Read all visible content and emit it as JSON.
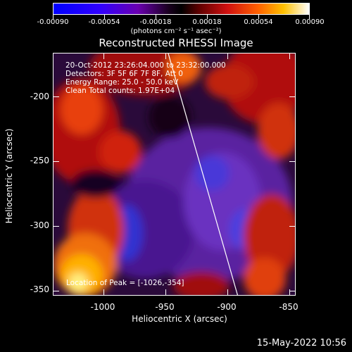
{
  "colorbar": {
    "ticks": [
      "-0.00090",
      "-0.00054",
      "-0.00018",
      "0.00018",
      "0.00054",
      "0.00090"
    ],
    "units": "(photons cm⁻² s⁻¹ asec⁻²)",
    "range": [
      -0.0009,
      0.0009
    ]
  },
  "title": "Reconstructed RHESSI Image",
  "info": {
    "time": "20-Oct-2012 23:26:04.000 to 23:32:00.000",
    "detectors": "Detectors: 3F 5F 6F 7F 8F, Att 0",
    "energy": "Energy Range: 25.0 - 50.0 keV",
    "clean": "Clean     Total counts: 1.97E+04"
  },
  "peak": "Location of Peak = [-1026,-354]",
  "axes": {
    "x_title": "Heliocentric X (arcsec)",
    "y_title": "Heliocentric Y (arcsec)",
    "x_ticks": [
      "-1000",
      "-950",
      "-900",
      "-850"
    ],
    "y_ticks": [
      "-200",
      "-250",
      "-300",
      "-350"
    ],
    "x_range": [
      -1040,
      -845
    ],
    "y_range": [
      -360,
      -175
    ]
  },
  "timestamp": "15-May-2022 10:56",
  "colors": {
    "accent": "#ffffff"
  }
}
